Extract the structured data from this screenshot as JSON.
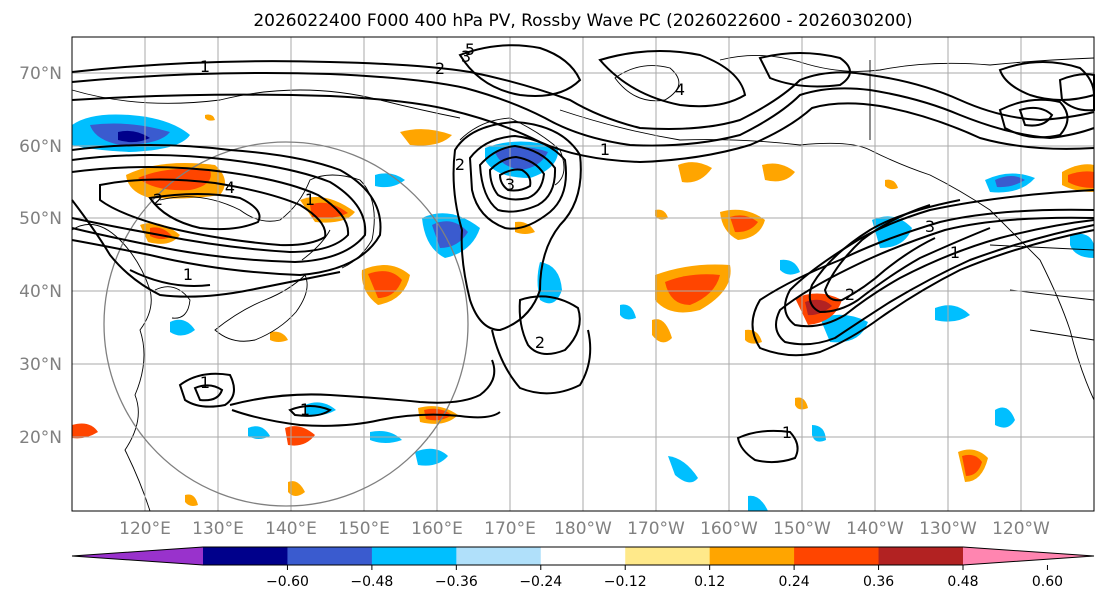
{
  "title": "2026022400 F000 400 hPa PV, Rossby Wave PC (2026022600 - 2026030200)",
  "lat_labels": [
    "70°N",
    "60°N",
    "50°N",
    "40°N",
    "30°N",
    "20°N"
  ],
  "lon_labels": [
    "120°E",
    "130°E",
    "140°E",
    "150°E",
    "160°E",
    "170°E",
    "180°W",
    "170°W",
    "160°W",
    "150°W",
    "140°W",
    "130°W",
    "120°W"
  ],
  "colorbar": {
    "ticks": [
      "−0.60",
      "−0.48",
      "−0.36",
      "−0.24",
      "−0.12",
      "0.12",
      "0.24",
      "0.36",
      "0.48",
      "0.60"
    ],
    "colors": [
      "#9932cc",
      "#00008b",
      "#3a5bcf",
      "#00bfff",
      "#b0e0fa",
      "#ffffff",
      "#ffe98a",
      "#ffa500",
      "#ff4500",
      "#b22222",
      "#ff85b0"
    ]
  },
  "contour_labels": [
    "1",
    "2",
    "3",
    "4",
    "5",
    "1",
    "2",
    "1",
    "4",
    "1",
    "2",
    "3",
    "2",
    "3",
    "1",
    "2",
    "1",
    "1",
    "1"
  ]
}
